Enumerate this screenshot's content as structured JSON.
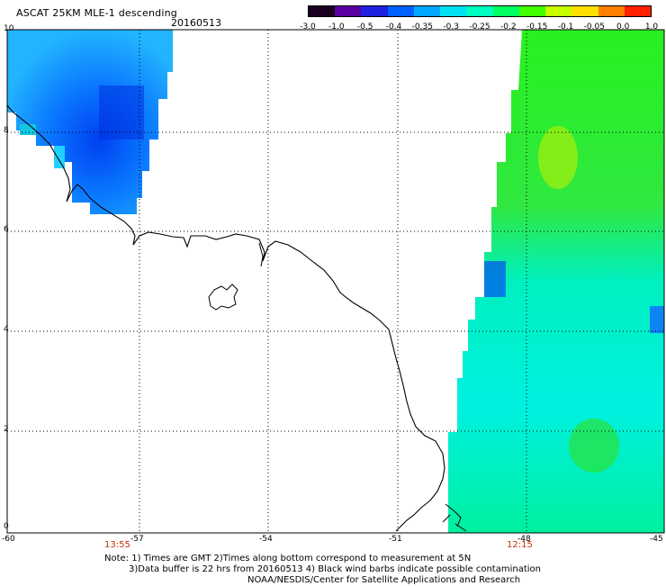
{
  "title": "ASCAT 25KM MLE-1 descending",
  "date": "20160513",
  "colorbar": {
    "ticks": [
      "-3.0",
      "-1.0",
      "-0.5",
      "-0.4",
      "-0.35",
      "-0.3",
      "-0.25",
      "-0.2",
      "-0.15",
      "-0.1",
      "-0.05",
      "0.0",
      "1.0"
    ],
    "colors": [
      "#1a0020",
      "#5a00a0",
      "#2020e0",
      "#0060ff",
      "#00a8ff",
      "#00e0f0",
      "#00ffc0",
      "#00ff60",
      "#40ff00",
      "#c8ff00",
      "#ffe000",
      "#ff8000",
      "#ff2000"
    ]
  },
  "axes": {
    "x_ticks": [
      "-60",
      "-57",
      "-54",
      "-51",
      "-48",
      "-45"
    ],
    "y_ticks": [
      "10",
      "8",
      "6",
      "4",
      "2",
      "0"
    ]
  },
  "pass_times": [
    "13:55",
    "12:15"
  ],
  "note": {
    "line1": "Note: 1) Times are GMT 2)Times along bottom correspond to measurement at 5N",
    "line2": "3)Data buffer is 22 hrs from 20160513 4) Black wind barbs indicate possible contamination",
    "line3": "NOAA/NESDIS/Center for Satellite Applications and Research"
  }
}
